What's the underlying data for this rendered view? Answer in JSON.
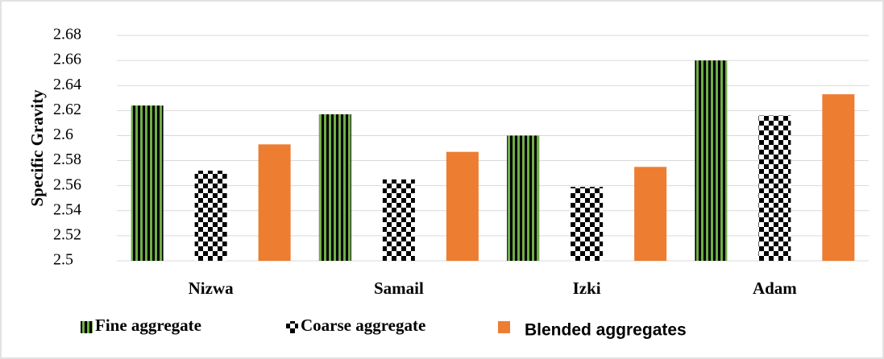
{
  "chart_data": {
    "type": "bar",
    "y_label": "Specific Gravity",
    "categories": [
      "Nizwa",
      "Samail",
      "Izki",
      "Adam"
    ],
    "series": [
      {
        "name": "Fine aggregate",
        "color": "#70ad47",
        "pattern": "vertical-stripes",
        "values": [
          2.624,
          2.617,
          2.6,
          2.66
        ]
      },
      {
        "name": "Coarse aggregate",
        "color": "#000000",
        "pattern": "checkerboard",
        "values": [
          2.572,
          2.565,
          2.559,
          2.616
        ]
      },
      {
        "name": "Blended aggregates",
        "color": "#ed7d31",
        "pattern": "solid",
        "values": [
          2.593,
          2.587,
          2.575,
          2.633
        ]
      }
    ],
    "ylim": [
      2.5,
      2.68
    ],
    "yticks": [
      2.5,
      2.52,
      2.54,
      2.56,
      2.58,
      2.6,
      2.62,
      2.64,
      2.66,
      2.68
    ],
    "grid": true,
    "legend": "bottom"
  }
}
